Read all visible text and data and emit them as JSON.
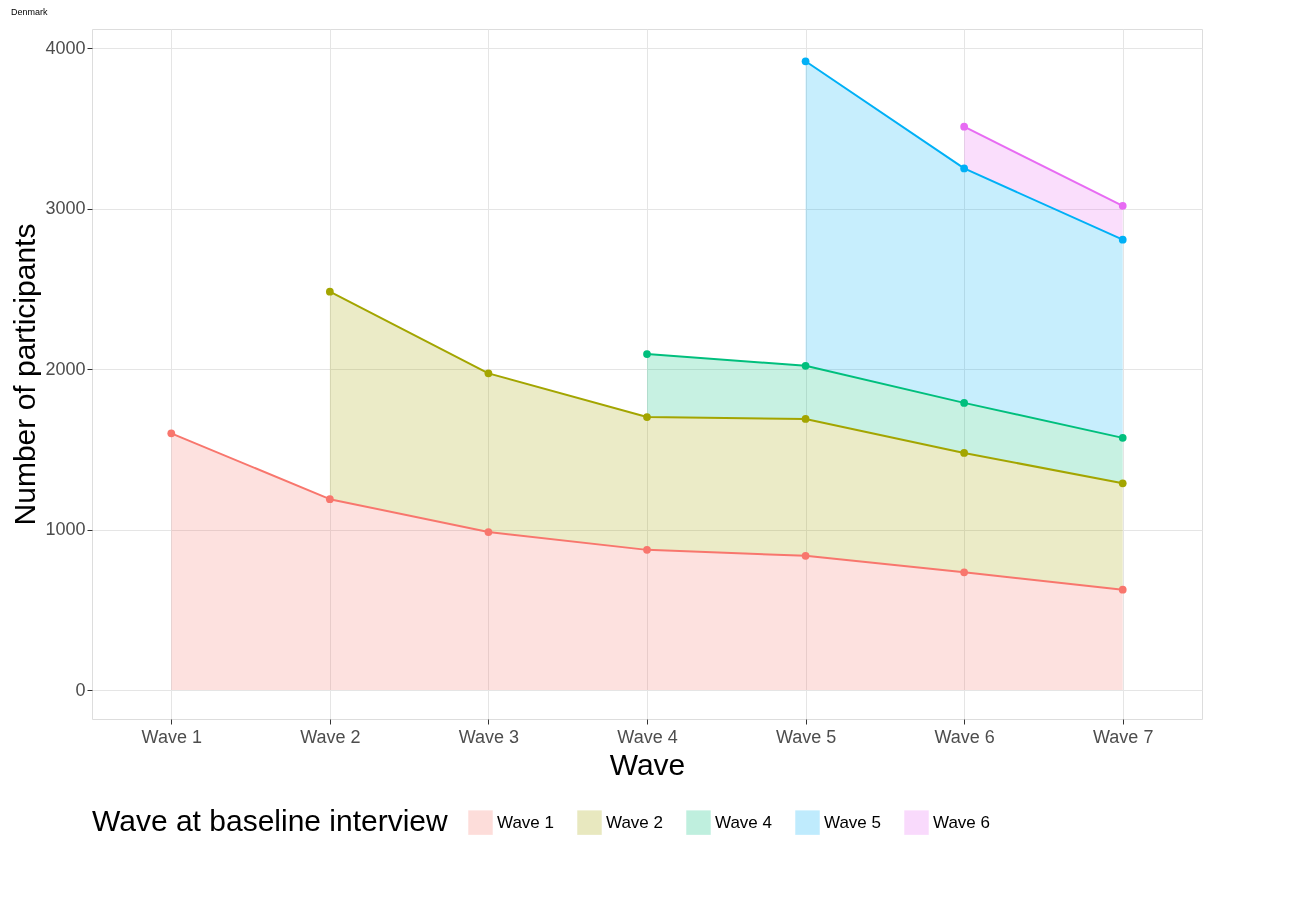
{
  "chart_data": {
    "type": "area",
    "stacked": true,
    "title": "Denmark",
    "xlabel": "Wave",
    "ylabel": "Number of participants",
    "legend_title": "Wave at baseline interview",
    "categories": [
      "Wave 1",
      "Wave 2",
      "Wave 3",
      "Wave 4",
      "Wave 5",
      "Wave 6",
      "Wave 7"
    ],
    "series": [
      {
        "name": "Wave 1",
        "color": "#f8766d",
        "values": [
          1600,
          1190,
          985,
          874,
          837,
          734,
          626
        ]
      },
      {
        "name": "Wave 2",
        "color": "#a3a500",
        "values": [
          null,
          1293,
          989,
          828,
          853,
          744,
          663
        ]
      },
      {
        "name": "Wave 4",
        "color": "#00bf7d",
        "values": [
          null,
          null,
          null,
          392,
          331,
          312,
          283
        ]
      },
      {
        "name": "Wave 5",
        "color": "#00b0f6",
        "values": [
          null,
          null,
          null,
          null,
          1898,
          1461,
          1235
        ]
      },
      {
        "name": "Wave 6",
        "color": "#e76bf3",
        "values": [
          null,
          null,
          null,
          null,
          null,
          260,
          211
        ]
      }
    ],
    "ylim": [
      -180,
      4120
    ],
    "yticks": [
      0,
      {
        "value": 1000,
        "label": "1000"
      },
      {
        "value": 2000,
        "label": "2000"
      },
      {
        "value": 3000,
        "label": "3000"
      },
      {
        "value": 4000,
        "label": "4000"
      }
    ],
    "grid": true,
    "legend": "bottom",
    "marker": "circle"
  }
}
